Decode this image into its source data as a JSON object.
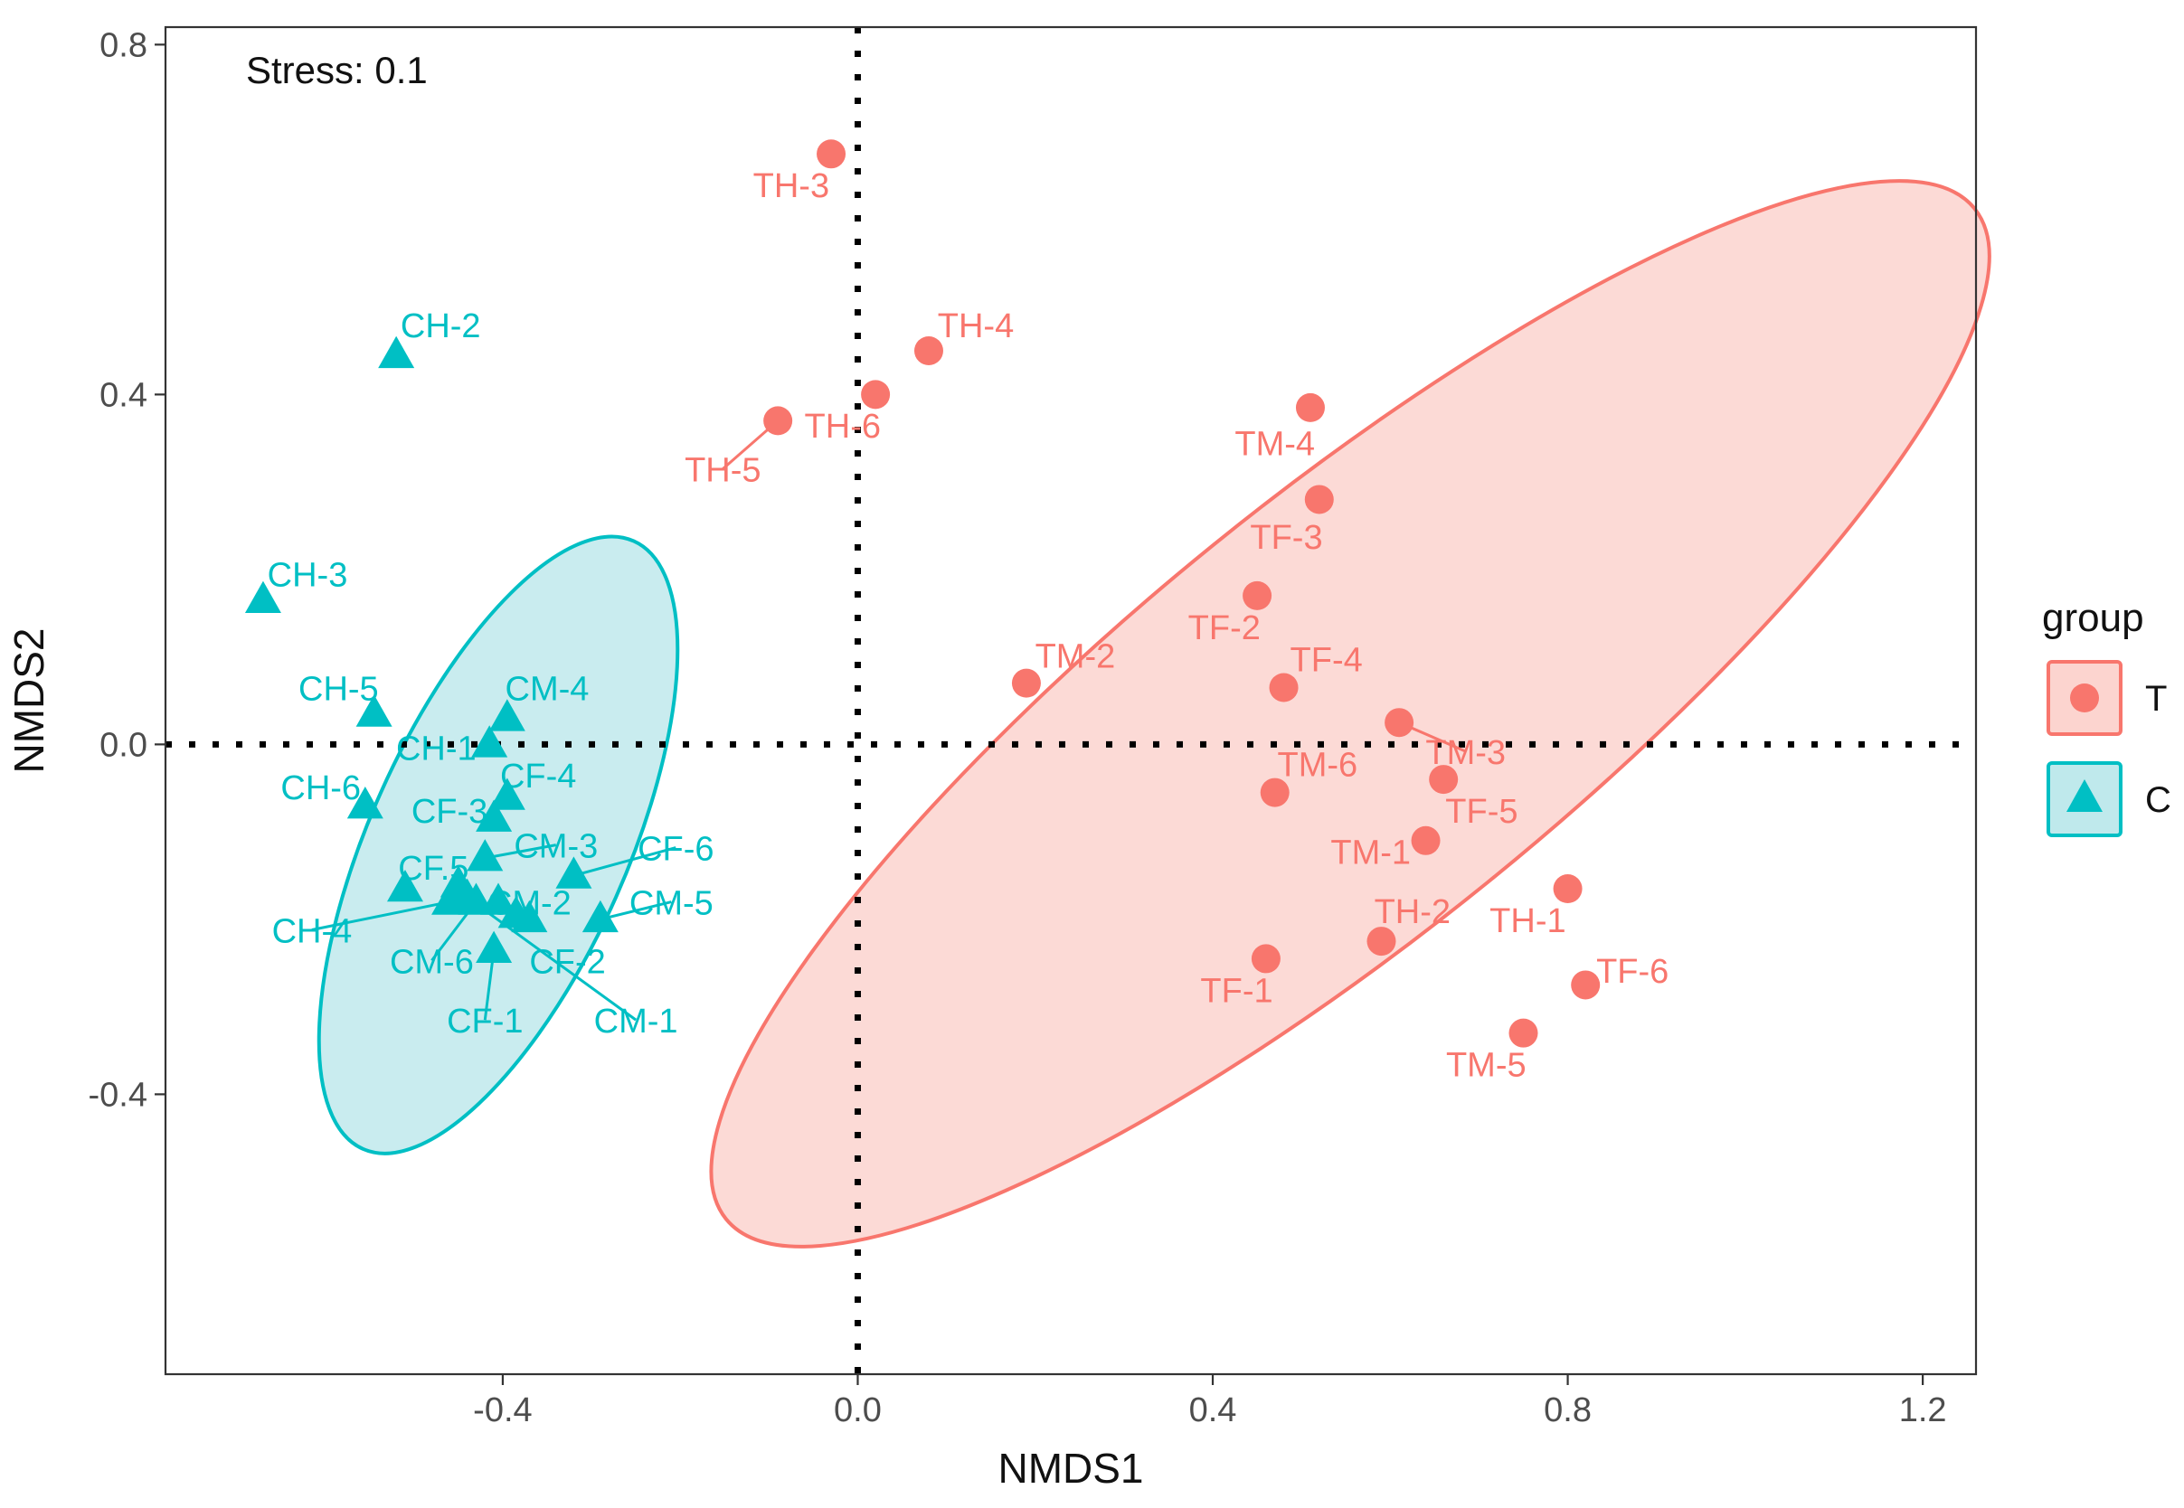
{
  "chart_data": {
    "type": "scatter",
    "title": "",
    "annotation": "Stress: 0.1",
    "xlabel": "NMDS1",
    "ylabel": "NMDS2",
    "xlim": [
      -0.78,
      1.26
    ],
    "ylim": [
      -0.72,
      0.82
    ],
    "x_ticks": [
      -0.4,
      0.0,
      0.4,
      0.8,
      1.2
    ],
    "y_ticks": [
      -0.4,
      0.0,
      0.4,
      0.8
    ],
    "x_tick_labels": [
      "-0.4",
      "0.0",
      "0.4",
      "0.8",
      "1.2"
    ],
    "y_tick_labels": [
      "-0.4",
      "0.0",
      "0.4",
      "0.8"
    ],
    "reference_lines": {
      "x": 0,
      "y": 0,
      "style": "dotted"
    },
    "legend": {
      "title": "group",
      "position": "right",
      "entries": [
        {
          "label": "T",
          "marker": "circle",
          "color": "#F8766D"
        },
        {
          "label": "C",
          "marker": "triangle",
          "color": "#00BFC4"
        }
      ]
    },
    "series": [
      {
        "name": "T",
        "marker": "circle",
        "color": "#F8766D",
        "fill": "#FCD4CF",
        "points": [
          {
            "label": "TH-3",
            "x": -0.03,
            "y": 0.675,
            "lx": -0.075,
            "ly": 0.64
          },
          {
            "label": "TH-4",
            "x": 0.08,
            "y": 0.45,
            "lx": 0.133,
            "ly": 0.48
          },
          {
            "label": "TH-6",
            "x": 0.02,
            "y": 0.4,
            "lx": -0.017,
            "ly": 0.365
          },
          {
            "label": "TH-5",
            "x": -0.09,
            "y": 0.37,
            "lx": -0.152,
            "ly": 0.315
          },
          {
            "label": "TM-4",
            "x": 0.51,
            "y": 0.385,
            "lx": 0.47,
            "ly": 0.345
          },
          {
            "label": "TF-3",
            "x": 0.52,
            "y": 0.28,
            "lx": 0.483,
            "ly": 0.238
          },
          {
            "label": "TF-2",
            "x": 0.45,
            "y": 0.17,
            "lx": 0.413,
            "ly": 0.135
          },
          {
            "label": "TM-2",
            "x": 0.19,
            "y": 0.07,
            "lx": 0.245,
            "ly": 0.102
          },
          {
            "label": "TF-4",
            "x": 0.48,
            "y": 0.065,
            "lx": 0.528,
            "ly": 0.098
          },
          {
            "label": "TM-3",
            "x": 0.61,
            "y": 0.025,
            "lx": 0.685,
            "ly": -0.008
          },
          {
            "label": "TM-6",
            "x": 0.47,
            "y": -0.055,
            "lx": 0.518,
            "ly": -0.022
          },
          {
            "label": "TF-5",
            "x": 0.66,
            "y": -0.04,
            "lx": 0.703,
            "ly": -0.075
          },
          {
            "label": "TM-1",
            "x": 0.64,
            "y": -0.11,
            "lx": 0.578,
            "ly": -0.122
          },
          {
            "label": "TH-2",
            "x": 0.59,
            "y": -0.225,
            "lx": 0.625,
            "ly": -0.19
          },
          {
            "label": "TH-1",
            "x": 0.8,
            "y": -0.165,
            "lx": 0.755,
            "ly": -0.2
          },
          {
            "label": "TF-1",
            "x": 0.46,
            "y": -0.245,
            "lx": 0.427,
            "ly": -0.28
          },
          {
            "label": "TF-6",
            "x": 0.82,
            "y": -0.275,
            "lx": 0.873,
            "ly": -0.258
          },
          {
            "label": "TM-5",
            "x": 0.75,
            "y": -0.33,
            "lx": 0.708,
            "ly": -0.365
          }
        ],
        "ellipse": {
          "cx": 0.555,
          "cy": 0.035,
          "rx": 0.905,
          "ry": 0.245,
          "angle_deg": -39
        }
      },
      {
        "name": "C",
        "marker": "triangle",
        "color": "#00BFC4",
        "fill": "#BFE9EC",
        "points": [
          {
            "label": "CH-2",
            "x": -0.52,
            "y": 0.445,
            "lx": -0.47,
            "ly": 0.48
          },
          {
            "label": "CH-3",
            "x": -0.67,
            "y": 0.165,
            "lx": -0.62,
            "ly": 0.195
          },
          {
            "label": "CH-5",
            "x": -0.545,
            "y": 0.035,
            "lx": -0.585,
            "ly": 0.065
          },
          {
            "label": "CM-4",
            "x": -0.395,
            "y": 0.03,
            "lx": -0.35,
            "ly": 0.065
          },
          {
            "label": "CH-1",
            "x": -0.415,
            "y": 0.0,
            "lx": -0.475,
            "ly": -0.003
          },
          {
            "label": "CF-4",
            "x": -0.395,
            "y": -0.06,
            "lx": -0.36,
            "ly": -0.035
          },
          {
            "label": "CH-6",
            "x": -0.555,
            "y": -0.07,
            "lx": -0.605,
            "ly": -0.048
          },
          {
            "label": "CF-3",
            "x": -0.41,
            "y": -0.085,
            "lx": -0.46,
            "ly": -0.075
          },
          {
            "label": "CM-3",
            "x": -0.42,
            "y": -0.13,
            "lx": -0.34,
            "ly": -0.115
          },
          {
            "label": "CF-6",
            "x": -0.32,
            "y": -0.15,
            "lx": -0.205,
            "ly": -0.118
          },
          {
            "label": "CF.5",
            "x": -0.51,
            "y": -0.165,
            "lx": -0.478,
            "ly": -0.14
          },
          {
            "label": "CM-2",
            "x": -0.405,
            "y": -0.18,
            "lx": -0.37,
            "ly": -0.18
          },
          {
            "label": "CM-5",
            "x": -0.29,
            "y": -0.2,
            "lx": -0.21,
            "ly": -0.18
          },
          {
            "label": "CH-4",
            "x": -0.46,
            "y": -0.18,
            "lx": -0.615,
            "ly": -0.212
          },
          {
            "label": "CM-6",
            "x": -0.43,
            "y": -0.18,
            "lx": -0.48,
            "ly": -0.247
          },
          {
            "label": "CF-2",
            "x": -0.37,
            "y": -0.2,
            "lx": -0.327,
            "ly": -0.247
          },
          {
            "label": "CF-1",
            "x": -0.41,
            "y": -0.235,
            "lx": -0.42,
            "ly": -0.315
          },
          {
            "label": "CM-1",
            "x": -0.44,
            "y": -0.175,
            "lx": -0.25,
            "ly": -0.315
          },
          {
            "label": "",
            "x": -0.45,
            "y": -0.16,
            "lx": 0,
            "ly": 0
          },
          {
            "label": "",
            "x": -0.385,
            "y": -0.195,
            "lx": 0,
            "ly": 0
          }
        ],
        "ellipse": {
          "cx": -0.405,
          "cy": -0.115,
          "rx": 0.375,
          "ry": 0.145,
          "angle_deg": -66
        }
      }
    ]
  }
}
